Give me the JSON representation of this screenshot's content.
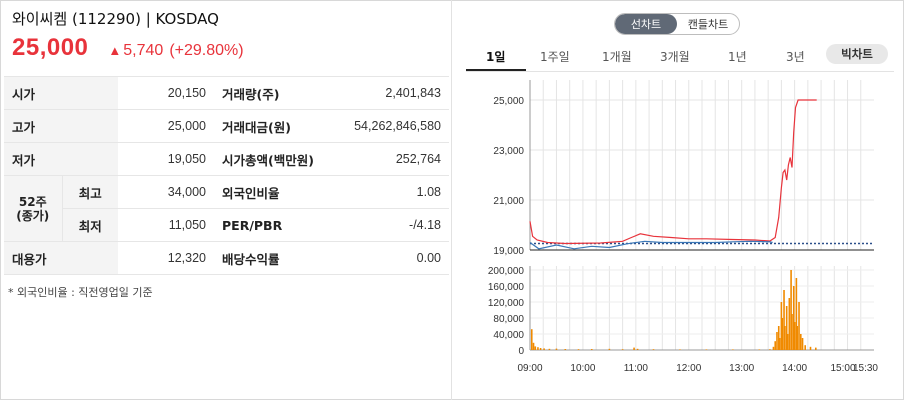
{
  "stock": {
    "name": "와이씨켐 (112290) | KOSDAQ",
    "price": "25,000",
    "change_arrow": "▲",
    "change": "5,740",
    "change_pct": "(+29.80%)",
    "color_up": "#e8333b"
  },
  "table": {
    "open_label": "시가",
    "open_value": "20,150",
    "high_label": "고가",
    "high_value": "25,000",
    "low_label": "저가",
    "low_value": "19,050",
    "w52_label_1": "52주",
    "w52_label_2": "(종가)",
    "w52_high_label": "최고",
    "w52_high_value": "34,000",
    "w52_low_label": "최저",
    "w52_low_value": "11,050",
    "loan_label": "대용가",
    "loan_value": "12,320",
    "volume_label": "거래량(주)",
    "volume_value": "2,401,843",
    "amount_label": "거래대금(원)",
    "amount_value": "54,262,846,580",
    "mcap_label": "시가총액(백만원)",
    "mcap_value": "252,764",
    "foreign_label": "외국인비율",
    "foreign_value": "1.08",
    "perpbr_label": "PER/PBR",
    "perpbr_value": "-/4.18",
    "div_label": "배당수익률",
    "div_value": "0.00"
  },
  "footnote": "* 외국인비율 : 직전영업일 기준",
  "chart_toggle": {
    "line": "선차트",
    "candle": "캔들차트",
    "selected": "line"
  },
  "periods": [
    "1일",
    "1주일",
    "1개월",
    "3개월",
    "1년",
    "3년"
  ],
  "selected_period": "1일",
  "big_chart_label": "빅차트",
  "chart_data": {
    "type": "line",
    "price_chart": {
      "y_ticks": [
        "25,000",
        "23,000",
        "21,000",
        "19,000"
      ],
      "ylim": [
        19000,
        25800
      ],
      "reference_line": 19260,
      "series": [
        {
          "color": "#e8333b",
          "points": [
            [
              0,
              20150
            ],
            [
              3,
              19550
            ],
            [
              8,
              19400
            ],
            [
              20,
              19300
            ],
            [
              40,
              19260
            ],
            [
              80,
              19280
            ],
            [
              105,
              19350
            ],
            [
              115,
              19500
            ],
            [
              125,
              19650
            ],
            [
              140,
              19550
            ],
            [
              160,
              19500
            ],
            [
              180,
              19450
            ],
            [
              200,
              19450
            ],
            [
              230,
              19420
            ],
            [
              255,
              19400
            ],
            [
              272,
              19360
            ],
            [
              278,
              19500
            ],
            [
              282,
              20300
            ],
            [
              285,
              21500
            ],
            [
              287,
              22100
            ],
            [
              289,
              22200
            ],
            [
              291,
              21800
            ],
            [
              293,
              22400
            ],
            [
              295,
              22700
            ],
            [
              297,
              22300
            ],
            [
              299,
              23700
            ],
            [
              301,
              24700
            ],
            [
              304,
              25000
            ],
            [
              325,
              25000
            ]
          ]
        },
        {
          "color": "#3a77b7",
          "points": [
            [
              0,
              19300
            ],
            [
              10,
              19050
            ],
            [
              30,
              19200
            ],
            [
              50,
              19050
            ],
            [
              70,
              19150
            ],
            [
              90,
              19100
            ],
            [
              110,
              19250
            ],
            [
              130,
              19350
            ],
            [
              150,
              19300
            ],
            [
              170,
              19300
            ],
            [
              190,
              19300
            ],
            [
              210,
              19300
            ],
            [
              230,
              19330
            ],
            [
              250,
              19350
            ],
            [
              272,
              19330
            ],
            [
              275,
              19300
            ]
          ]
        }
      ]
    },
    "volume_chart": {
      "y_ticks": [
        "200,000",
        "160,000",
        "120,000",
        "80,000",
        "40,000",
        "0"
      ],
      "ylim": [
        0,
        210000
      ],
      "color": "#f08a00",
      "bars": [
        [
          2,
          52000
        ],
        [
          4,
          18000
        ],
        [
          6,
          9000
        ],
        [
          9,
          7000
        ],
        [
          12,
          5000
        ],
        [
          16,
          4000
        ],
        [
          22,
          3000
        ],
        [
          30,
          3500
        ],
        [
          40,
          2500
        ],
        [
          55,
          2000
        ],
        [
          70,
          2500
        ],
        [
          90,
          3000
        ],
        [
          105,
          2000
        ],
        [
          118,
          6000
        ],
        [
          122,
          3000
        ],
        [
          140,
          2000
        ],
        [
          170,
          1500
        ],
        [
          200,
          1500
        ],
        [
          230,
          1500
        ],
        [
          260,
          1500
        ],
        [
          272,
          2000
        ],
        [
          276,
          8000
        ],
        [
          278,
          22000
        ],
        [
          280,
          45000
        ],
        [
          282,
          60000
        ],
        [
          283,
          30000
        ],
        [
          285,
          120000
        ],
        [
          286,
          80000
        ],
        [
          288,
          150000
        ],
        [
          289,
          60000
        ],
        [
          291,
          110000
        ],
        [
          292,
          40000
        ],
        [
          294,
          130000
        ],
        [
          296,
          200000
        ],
        [
          297,
          90000
        ],
        [
          299,
          160000
        ],
        [
          300,
          70000
        ],
        [
          302,
          180000
        ],
        [
          303,
          60000
        ],
        [
          305,
          120000
        ],
        [
          307,
          40000
        ],
        [
          309,
          30000
        ],
        [
          312,
          12000
        ],
        [
          318,
          8000
        ],
        [
          324,
          6000
        ]
      ]
    },
    "x_ticks": [
      "09:00",
      "10:00",
      "11:00",
      "12:00",
      "13:00",
      "14:00",
      "15:00",
      "15:30"
    ],
    "x_tick_minutes": [
      0,
      60,
      120,
      180,
      240,
      300,
      360,
      390
    ],
    "x_minutes_range": [
      0,
      390
    ]
  }
}
